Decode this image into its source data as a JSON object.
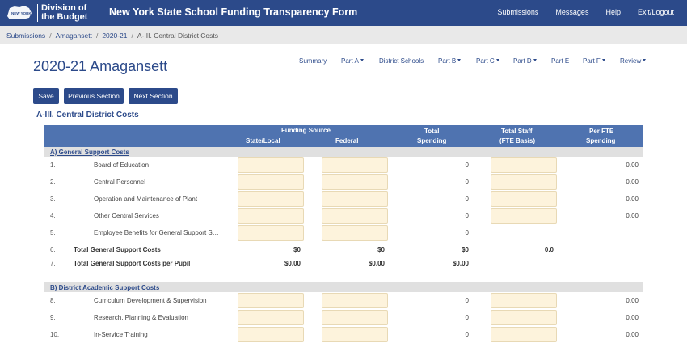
{
  "header": {
    "logo_state": "NEW YORK STATE OF OPPORTUNITY",
    "logo_division": "Division of the Budget",
    "title": "New York State School Funding Transparency Form",
    "nav": [
      "Submissions",
      "Messages",
      "Help",
      "Exit/Logout"
    ]
  },
  "breadcrumb": [
    "Submissions",
    "Amagansett",
    "2020-21",
    "A-III. Central District Costs"
  ],
  "page_title": "2020-21 Amagansett",
  "subnav": [
    "Summary",
    "Part A",
    "District Schools",
    "Part B",
    "Part C",
    "Part D",
    "Part E",
    "Part F",
    "Review"
  ],
  "buttons": {
    "save": "Save",
    "previous": "Previous Section",
    "next": "Next Section"
  },
  "section_title": "A-III. Central District Costs",
  "table_header": {
    "funding_source": "Funding Source",
    "state_local": "State/Local",
    "federal": "Federal",
    "total_spending_1": "Total",
    "total_spending_2": "Spending",
    "total_staff_1": "Total Staff",
    "total_staff_2": "(FTE Basis)",
    "per_fte_1": "Per FTE",
    "per_fte_2": "Spending"
  },
  "group_a": "A) General Support Costs",
  "rows_a": [
    {
      "num": "1.",
      "label": "Board of Education",
      "total": "0",
      "per_fte": "0.00"
    },
    {
      "num": "2.",
      "label": "Central Personnel",
      "total": "0",
      "per_fte": "0.00"
    },
    {
      "num": "3.",
      "label": "Operation and Maintenance of Plant",
      "total": "0",
      "per_fte": "0.00"
    },
    {
      "num": "4.",
      "label": "Other Central Services",
      "total": "0",
      "per_fte": "0.00"
    },
    {
      "num": "5.",
      "label": "Employee Benefits for General Support Services",
      "total": "0"
    }
  ],
  "total_row": {
    "num": "6.",
    "label": "Total General Support Costs",
    "state": "$0",
    "federal": "$0",
    "total": "$0",
    "staff": "0.0"
  },
  "per_pupil_row": {
    "num": "7.",
    "label": "Total General Support Costs per Pupil",
    "state": "$0.00",
    "federal": "$0.00",
    "total": "$0.00"
  },
  "group_b": "B) District Academic Support Costs",
  "rows_b": [
    {
      "num": "8.",
      "label": "Curriculum Development & Supervision",
      "total": "0",
      "per_fte": "0.00"
    },
    {
      "num": "9.",
      "label": "Research, Planning & Evaluation",
      "total": "0",
      "per_fte": "0.00"
    },
    {
      "num": "10.",
      "label": "In-Service Training",
      "total": "0",
      "per_fte": "0.00"
    }
  ]
}
